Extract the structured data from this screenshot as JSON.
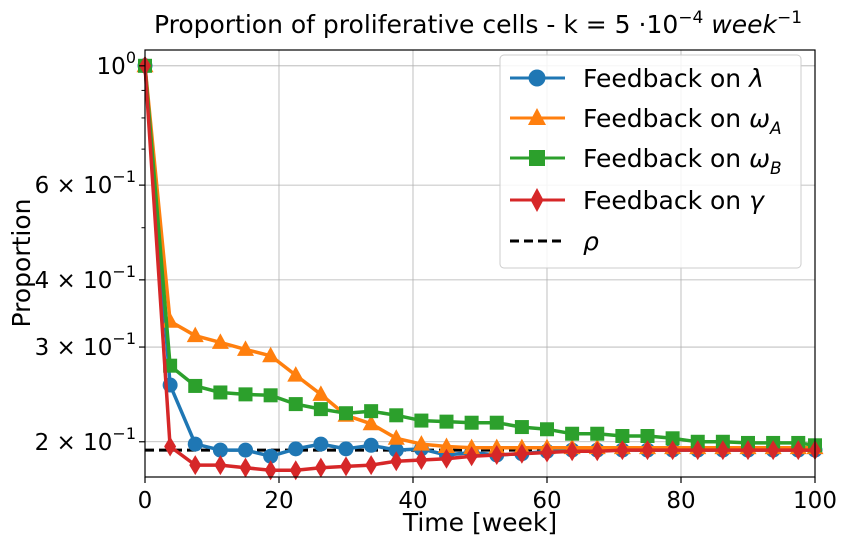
{
  "chart_data": {
    "type": "line",
    "title": "Proportion of proliferative cells - k = 5 ·10⁻⁴ week⁻¹",
    "xlabel": "Time [week]",
    "ylabel": "Proportion",
    "xlim": [
      0,
      100
    ],
    "ylim": [
      0.172,
      1.07
    ],
    "yscale": "log",
    "grid": true,
    "legend_position": "top-right",
    "x_ticks": [
      0,
      20,
      40,
      60,
      80,
      100
    ],
    "x_tick_labels": [
      "0",
      "20",
      "40",
      "60",
      "80",
      "100"
    ],
    "y_ticks": [
      {
        "value": 1.0,
        "mantissa": "",
        "exp": "0"
      },
      {
        "value": 0.6,
        "mantissa": "6 × ",
        "exp": "−1"
      },
      {
        "value": 0.4,
        "mantissa": "4 × ",
        "exp": "−1"
      },
      {
        "value": 0.3,
        "mantissa": "3 × ",
        "exp": "−1"
      },
      {
        "value": 0.2,
        "mantissa": "2 × ",
        "exp": "−1"
      }
    ],
    "y_minor_ticks": [
      0.5,
      0.7,
      0.8,
      0.9
    ],
    "x": [
      0,
      3.75,
      7.5,
      11.25,
      15,
      18.75,
      22.5,
      26.25,
      30,
      33.75,
      37.5,
      41.25,
      45,
      48.75,
      52.5,
      56.25,
      60,
      63.75,
      67.5,
      71.25,
      75,
      78.75,
      82.5,
      86.25,
      90,
      93.75,
      97.5,
      100
    ],
    "series": [
      {
        "name": "Feedback on λ",
        "color": "#1f77b4",
        "marker": "circle",
        "values": [
          1.0,
          0.255,
          0.198,
          0.193,
          0.193,
          0.188,
          0.194,
          0.198,
          0.194,
          0.197,
          0.193,
          0.194,
          0.189,
          0.191,
          0.189,
          0.19,
          0.192,
          0.193,
          0.193,
          0.193,
          0.193,
          0.193,
          0.193,
          0.193,
          0.193,
          0.193,
          0.193,
          0.193
        ]
      },
      {
        "name": "Feedback on ωA",
        "color": "#ff7f0e",
        "marker": "triangle",
        "values": [
          1.0,
          0.335,
          0.315,
          0.306,
          0.297,
          0.289,
          0.266,
          0.245,
          0.224,
          0.216,
          0.203,
          0.198,
          0.196,
          0.195,
          0.195,
          0.195,
          0.195,
          0.195,
          0.195,
          0.195,
          0.195,
          0.195,
          0.195,
          0.195,
          0.195,
          0.195,
          0.195,
          0.195
        ]
      },
      {
        "name": "Feedback on ωB",
        "color": "#2ca02c",
        "marker": "square",
        "values": [
          1.0,
          0.277,
          0.254,
          0.247,
          0.245,
          0.244,
          0.235,
          0.23,
          0.226,
          0.228,
          0.224,
          0.219,
          0.218,
          0.217,
          0.217,
          0.213,
          0.211,
          0.207,
          0.207,
          0.205,
          0.205,
          0.203,
          0.2,
          0.2,
          0.199,
          0.199,
          0.199,
          0.197
        ]
      },
      {
        "name": "Feedback on γ",
        "color": "#d62728",
        "marker": "diamond",
        "values": [
          1.0,
          0.196,
          0.181,
          0.181,
          0.179,
          0.177,
          0.177,
          0.179,
          0.18,
          0.181,
          0.184,
          0.185,
          0.186,
          0.188,
          0.189,
          0.19,
          0.191,
          0.192,
          0.192,
          0.193,
          0.193,
          0.193,
          0.193,
          0.193,
          0.193,
          0.193,
          0.193,
          0.193
        ]
      }
    ],
    "reference_line": {
      "name": "ρ",
      "value": 0.193,
      "color": "#000000",
      "style": "dashed"
    }
  }
}
